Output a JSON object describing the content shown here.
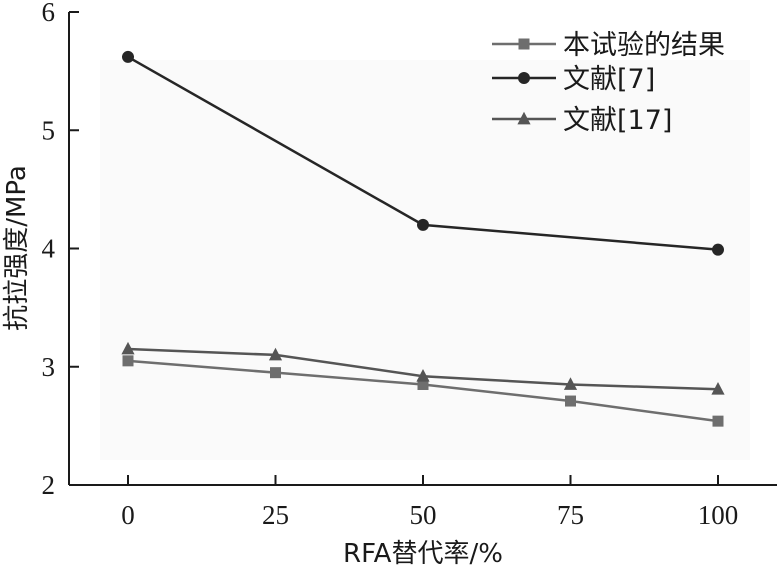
{
  "chart_data": {
    "type": "line",
    "x": [
      0,
      25,
      50,
      75,
      100
    ],
    "xticks": [
      "0",
      "25",
      "50",
      "75",
      "100"
    ],
    "yticks": [
      "2",
      "3",
      "4",
      "5",
      "6"
    ],
    "xlim": [
      -10,
      110
    ],
    "ylim": [
      2,
      6
    ],
    "xlabel": "RFA替代率/%",
    "ylabel": "抗拉强度/MPa",
    "legend_position": "top-right",
    "grid": false,
    "series": [
      {
        "name": "本试验的结果",
        "marker": "square",
        "color": "#6e6e6e",
        "x": [
          0,
          25,
          50,
          75,
          100
        ],
        "values": [
          3.05,
          2.95,
          2.85,
          2.71,
          2.54
        ]
      },
      {
        "name": "文献[7]",
        "marker": "circle",
        "color": "#262626",
        "x": [
          0,
          50,
          100
        ],
        "values": [
          5.62,
          4.2,
          3.99
        ]
      },
      {
        "name": "文献[17]",
        "marker": "triangle",
        "color": "#555555",
        "x": [
          0,
          25,
          50,
          75,
          100
        ],
        "values": [
          3.15,
          3.1,
          2.92,
          2.85,
          2.81
        ]
      }
    ]
  }
}
